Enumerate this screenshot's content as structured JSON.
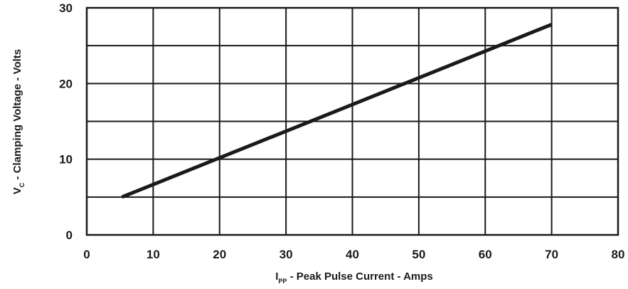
{
  "chart_data": {
    "type": "line",
    "title": "",
    "xlabel": {
      "main": "I",
      "sub": "PP",
      "rest": " - Peak Pulse Current - Amps"
    },
    "ylabel": {
      "main": "V",
      "sub": "C",
      "rest": " - Clamping Voltage - Volts"
    },
    "xlim": [
      0,
      80
    ],
    "ylim": [
      0,
      30
    ],
    "x_ticks": [
      0,
      10,
      20,
      30,
      40,
      50,
      60,
      70,
      80
    ],
    "y_ticks": [
      0,
      10,
      20,
      30
    ],
    "x_grid_step": 10,
    "y_grid_step": 5,
    "grid": true,
    "series": [
      {
        "x": [
          5.3,
          70
        ],
        "y": [
          5,
          27.8
        ]
      }
    ],
    "colors": {
      "line": "#1a1a1a",
      "grid": "#1a1a1a",
      "background": "#ffffff"
    }
  }
}
